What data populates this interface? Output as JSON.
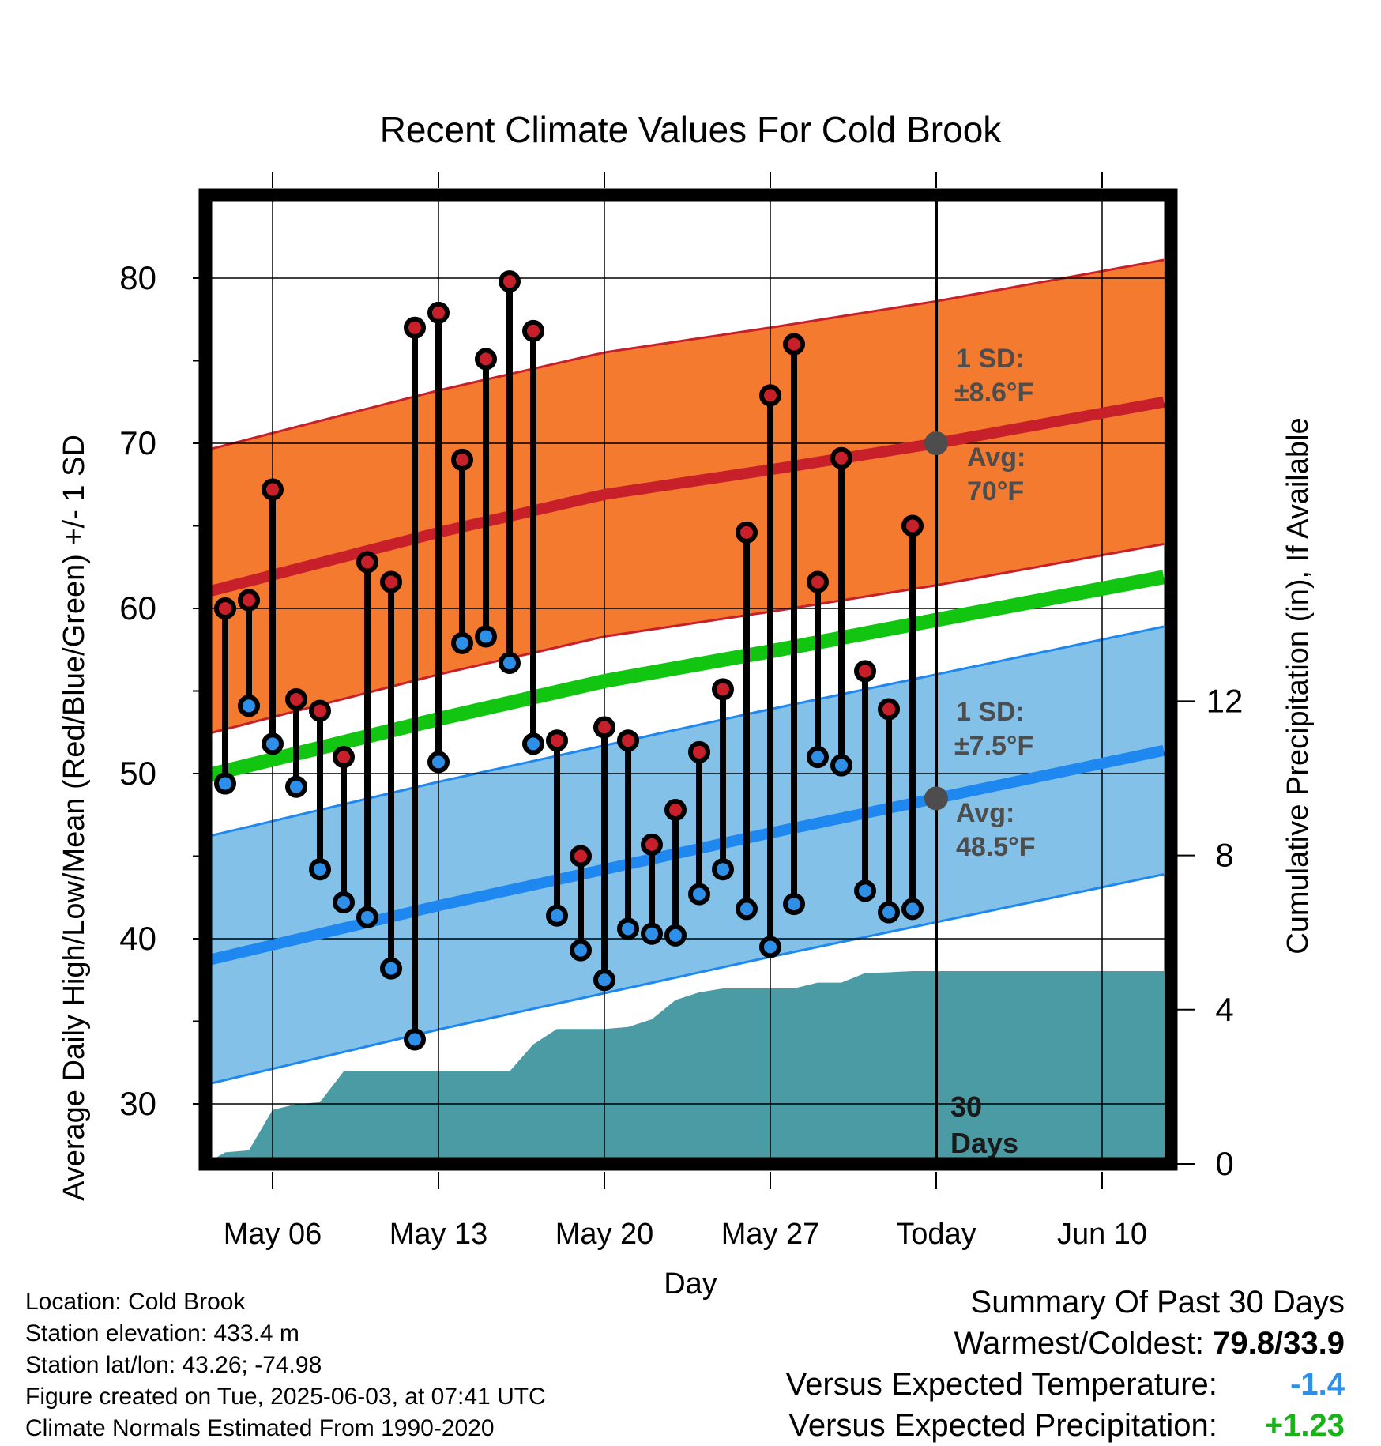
{
  "chart_data": {
    "type": "line",
    "title": "Recent Climate Values For Cold Brook",
    "xlabel": "Day",
    "ylabel_left": "Average Daily High/Low/Mean (Red/Blue/Green) +/- 1 SD",
    "ylabel_right": "Cumulative Precipitation (in), If Available",
    "x_range_days": [
      -27,
      14
    ],
    "ylim": [
      25.5,
      85
    ],
    "y2lim": [
      0,
      30
    ],
    "y_ticks": [
      "30",
      "40",
      "50",
      "60",
      "70",
      "80"
    ],
    "y2_ticks": [
      "0",
      "4",
      "8",
      "12"
    ],
    "x_ticks": [
      {
        "day": -28,
        "label": "May 06"
      },
      {
        "day": -21,
        "label": "May 13"
      },
      {
        "day": -14,
        "label": "May 20"
      },
      {
        "day": -7,
        "label": "May 27"
      },
      {
        "day": 0,
        "label": "Today"
      },
      {
        "day": 7,
        "label": "Jun 10"
      }
    ],
    "grid": true,
    "today_line_day": 0,
    "normals": {
      "high_avg": [
        {
          "day": -31.3,
          "value": 60.8
        },
        {
          "day": -21,
          "value": 64.6
        },
        {
          "day": -14,
          "value": 66.9
        },
        {
          "day": -7,
          "value": 68.4
        },
        {
          "day": 0,
          "value": 70.0
        },
        {
          "day": 9.6,
          "value": 72.5
        }
      ],
      "high_sd": 8.6,
      "low_avg": [
        {
          "day": -31.3,
          "value": 38.5
        },
        {
          "day": -21,
          "value": 42.0
        },
        {
          "day": -14,
          "value": 44.2
        },
        {
          "day": -7,
          "value": 46.4
        },
        {
          "day": 0,
          "value": 48.5
        },
        {
          "day": 9.6,
          "value": 51.4
        }
      ],
      "low_sd": 7.5,
      "mean_avg": [
        {
          "day": -31.3,
          "value": 49.7
        },
        {
          "day": -21,
          "value": 53.3
        },
        {
          "day": -14,
          "value": 55.6
        },
        {
          "day": -7,
          "value": 57.4
        },
        {
          "day": 0,
          "value": 59.3
        },
        {
          "day": 9.6,
          "value": 61.9
        }
      ]
    },
    "series": [
      {
        "name": "High",
        "color": "#c8202a",
        "values": [
          {
            "day": -30,
            "value": 60.0
          },
          {
            "day": -29,
            "value": 60.5
          },
          {
            "day": -28,
            "value": 67.2
          },
          {
            "day": -27,
            "value": 54.5
          },
          {
            "day": -26,
            "value": 53.8
          },
          {
            "day": -25,
            "value": 51.0
          },
          {
            "day": -24,
            "value": 62.8
          },
          {
            "day": -23,
            "value": 61.6
          },
          {
            "day": -22,
            "value": 77.0
          },
          {
            "day": -21,
            "value": 77.9
          },
          {
            "day": -20,
            "value": 69.0
          },
          {
            "day": -19,
            "value": 75.1
          },
          {
            "day": -18,
            "value": 79.8
          },
          {
            "day": -17,
            "value": 76.8
          },
          {
            "day": -16,
            "value": 52.0
          },
          {
            "day": -15,
            "value": 45.0
          },
          {
            "day": -14,
            "value": 52.8
          },
          {
            "day": -13,
            "value": 52.0
          },
          {
            "day": -12,
            "value": 45.7
          },
          {
            "day": -11,
            "value": 47.8
          },
          {
            "day": -10,
            "value": 51.3
          },
          {
            "day": -9,
            "value": 55.1
          },
          {
            "day": -8,
            "value": 64.6
          },
          {
            "day": -7,
            "value": 72.9
          },
          {
            "day": -6,
            "value": 76.0
          },
          {
            "day": -5,
            "value": 61.6
          },
          {
            "day": -4,
            "value": 69.1
          },
          {
            "day": -3,
            "value": 56.2
          },
          {
            "day": -2,
            "value": 53.9
          },
          {
            "day": -1,
            "value": 65.0
          }
        ]
      },
      {
        "name": "Low",
        "color": "#2e8fe8",
        "values": [
          {
            "day": -30,
            "value": 49.4
          },
          {
            "day": -29,
            "value": 54.1
          },
          {
            "day": -28,
            "value": 51.8
          },
          {
            "day": -27,
            "value": 49.2
          },
          {
            "day": -26,
            "value": 44.2
          },
          {
            "day": -25,
            "value": 42.2
          },
          {
            "day": -24,
            "value": 41.3
          },
          {
            "day": -23,
            "value": 38.2
          },
          {
            "day": -22,
            "value": 33.9
          },
          {
            "day": -21,
            "value": 50.7
          },
          {
            "day": -20,
            "value": 57.9
          },
          {
            "day": -19,
            "value": 58.3
          },
          {
            "day": -18,
            "value": 56.7
          },
          {
            "day": -17,
            "value": 51.8
          },
          {
            "day": -16,
            "value": 41.4
          },
          {
            "day": -15,
            "value": 39.3
          },
          {
            "day": -14,
            "value": 37.5
          },
          {
            "day": -13,
            "value": 40.6
          },
          {
            "day": -12,
            "value": 40.3
          },
          {
            "day": -11,
            "value": 40.2
          },
          {
            "day": -10,
            "value": 42.7
          },
          {
            "day": -9,
            "value": 44.2
          },
          {
            "day": -8,
            "value": 41.8
          },
          {
            "day": -7,
            "value": 39.5
          },
          {
            "day": -6,
            "value": 42.1
          },
          {
            "day": -5,
            "value": 51.0
          },
          {
            "day": -4,
            "value": 50.5
          },
          {
            "day": -3,
            "value": 42.9
          },
          {
            "day": -2,
            "value": 41.6
          },
          {
            "day": -1,
            "value": 41.8
          }
        ]
      },
      {
        "name": "Cumulative Precipitation",
        "color": "#4a9ba4",
        "values": [
          {
            "day": -30.7,
            "value": 0.05
          },
          {
            "day": -30,
            "value": 0.3
          },
          {
            "day": -29,
            "value": 0.35
          },
          {
            "day": -28,
            "value": 1.4
          },
          {
            "day": -27,
            "value": 1.55
          },
          {
            "day": -26,
            "value": 1.6
          },
          {
            "day": -25,
            "value": 2.4
          },
          {
            "day": -24,
            "value": 2.4
          },
          {
            "day": -23,
            "value": 2.4
          },
          {
            "day": -22,
            "value": 2.4
          },
          {
            "day": -21,
            "value": 2.4
          },
          {
            "day": -20,
            "value": 2.4
          },
          {
            "day": -19,
            "value": 2.4
          },
          {
            "day": -18,
            "value": 2.4
          },
          {
            "day": -17,
            "value": 3.1
          },
          {
            "day": -16,
            "value": 3.5
          },
          {
            "day": -15,
            "value": 3.5
          },
          {
            "day": -14,
            "value": 3.5
          },
          {
            "day": -13,
            "value": 3.55
          },
          {
            "day": -12,
            "value": 3.75
          },
          {
            "day": -11,
            "value": 4.25
          },
          {
            "day": -10,
            "value": 4.45
          },
          {
            "day": -9,
            "value": 4.55
          },
          {
            "day": -8,
            "value": 4.55
          },
          {
            "day": -7,
            "value": 4.55
          },
          {
            "day": -6,
            "value": 4.55
          },
          {
            "day": -5,
            "value": 4.7
          },
          {
            "day": -4,
            "value": 4.7
          },
          {
            "day": -3,
            "value": 4.95
          },
          {
            "day": -2,
            "value": 4.97
          },
          {
            "day": -1,
            "value": 5.0
          },
          {
            "day": 0,
            "value": 5.0
          },
          {
            "day": 9.6,
            "value": 5.0
          }
        ]
      }
    ],
    "annotations": {
      "high_sd_line1": "1 SD:",
      "high_sd_line2": "±8.6°F",
      "high_avg_line1": "Avg:",
      "high_avg_line2": "70°F",
      "low_sd_line1": "1 SD:",
      "low_sd_line2": "±7.5°F",
      "low_avg_line1": "Avg:",
      "low_avg_line2": "48.5°F",
      "days_line1": "30",
      "days_line2": "Days"
    },
    "colors": {
      "high_band": "#f47a30",
      "high_line": "#c8202a",
      "low_band": "#83c1e8",
      "low_line": "#1e88f0",
      "mean_line": "#11c511",
      "precip": "#4a9ba4",
      "annotation": "#4d4d4d"
    }
  },
  "info": {
    "location": "Location: Cold Brook",
    "elevation": "Station elevation: 433.4 m",
    "latlon": "Station lat/lon: 43.26; -74.98",
    "created": "Figure created on Tue, 2025-06-03, at 07:41 UTC",
    "normals": "Climate Normals Estimated From 1990-2020"
  },
  "summary": {
    "title": "Summary Of Past 30 Days",
    "warmest_label": "Warmest/Coldest:",
    "warmest_value": "79.8/33.9",
    "temp_label": "Versus Expected Temperature:",
    "temp_value": "-1.4",
    "temp_color": "#2e8fe8",
    "precip_label": "Versus Expected Precipitation:",
    "precip_value": "+1.23",
    "precip_color": "#19b219"
  }
}
